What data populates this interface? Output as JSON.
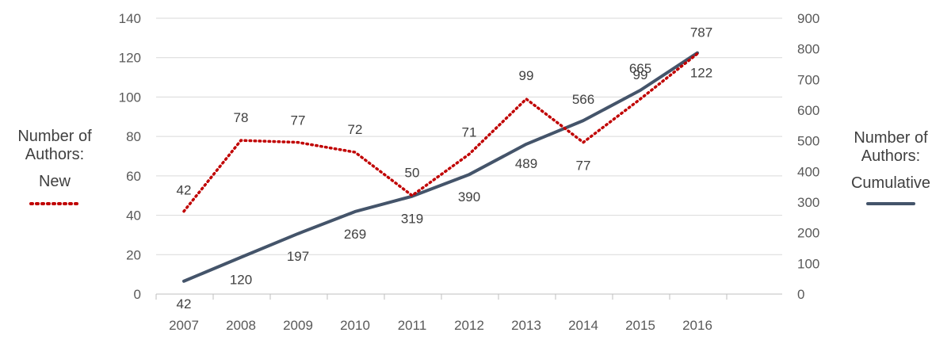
{
  "chart_data": {
    "type": "line",
    "categories": [
      "2007",
      "2008",
      "2009",
      "2010",
      "2011",
      "2012",
      "2013",
      "2014",
      "2015",
      "2016"
    ],
    "series": [
      {
        "name": "Number of Authors: New",
        "axis": "left",
        "values": [
          42,
          78,
          77,
          72,
          50,
          71,
          99,
          77,
          99,
          122
        ],
        "color": "#c00000",
        "style": "dotted"
      },
      {
        "name": "Number of Authors: Cumulative",
        "axis": "right",
        "values": [
          42,
          120,
          197,
          269,
          319,
          390,
          489,
          566,
          665,
          787
        ],
        "color": "#44546a",
        "style": "solid"
      }
    ],
    "y_left": {
      "ylim": [
        0,
        140
      ],
      "ticks": [
        "0",
        "20",
        "40",
        "60",
        "80",
        "100",
        "120",
        "140"
      ]
    },
    "y_right": {
      "ylim": [
        0,
        900
      ],
      "ticks": [
        "0",
        "100",
        "200",
        "300",
        "400",
        "500",
        "600",
        "700",
        "800",
        "900"
      ]
    },
    "grid": true,
    "legend_left": {
      "line1": "Number of",
      "line2": "Authors:",
      "line3": "New"
    },
    "legend_right": {
      "line1": "Number of",
      "line2": "Authors:",
      "line3": "Cumulative"
    }
  }
}
